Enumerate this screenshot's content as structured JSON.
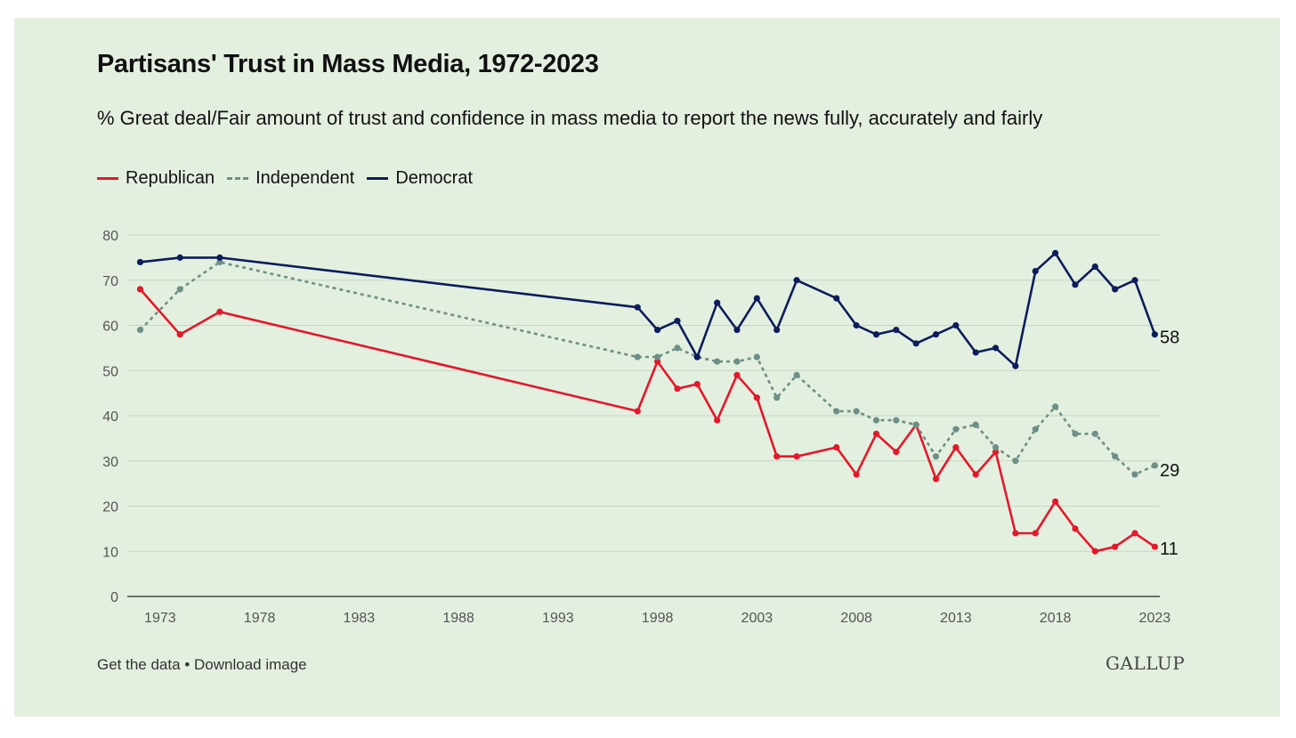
{
  "title": "Partisans' Trust in Mass Media, 1972-2023",
  "subtitle": "% Great deal/Fair amount of trust and confidence in mass media to report the news fully, accurately and fairly",
  "footer": {
    "get_data": "Get the data",
    "separator": "•",
    "download": "Download image"
  },
  "logo": "GALLUP",
  "colors": {
    "background": "#e3f0e0",
    "republican": "#e4182a",
    "independent": "#6e8f86",
    "democrat": "#0d1c5c",
    "grid": "#c6d6c3"
  },
  "chart_data": {
    "type": "line",
    "title": "Partisans' Trust in Mass Media, 1972-2023",
    "xlabel": "",
    "ylabel": "",
    "xlim": [
      1972,
      2023
    ],
    "ylim": [
      0,
      80
    ],
    "x_ticks": [
      "1973",
      "1978",
      "1983",
      "1988",
      "1993",
      "1998",
      "2003",
      "2008",
      "2013",
      "2018",
      "2023"
    ],
    "y_ticks": [
      "0",
      "10",
      "20",
      "30",
      "40",
      "50",
      "60",
      "70",
      "80"
    ],
    "grid": true,
    "legend": "top-left",
    "series": [
      {
        "name": "Republican",
        "color": "#e4182a",
        "style": "solid",
        "end_label": "11",
        "x": [
          1972,
          1974,
          1976,
          1997,
          1998,
          1999,
          2000,
          2001,
          2002,
          2003,
          2004,
          2005,
          2007,
          2008,
          2009,
          2010,
          2011,
          2012,
          2013,
          2014,
          2015,
          2016,
          2017,
          2018,
          2019,
          2020,
          2021,
          2022,
          2023
        ],
        "values": [
          68,
          58,
          63,
          41,
          52,
          46,
          47,
          39,
          49,
          44,
          31,
          31,
          33,
          27,
          36,
          32,
          38,
          26,
          33,
          27,
          32,
          14,
          14,
          21,
          15,
          10,
          11,
          14,
          11
        ]
      },
      {
        "name": "Independent",
        "color": "#6e8f86",
        "style": "dashed",
        "end_label": "29",
        "x": [
          1972,
          1974,
          1976,
          1997,
          1998,
          1999,
          2000,
          2001,
          2002,
          2003,
          2004,
          2005,
          2007,
          2008,
          2009,
          2010,
          2011,
          2012,
          2013,
          2014,
          2015,
          2016,
          2017,
          2018,
          2019,
          2020,
          2021,
          2022,
          2023
        ],
        "values": [
          59,
          68,
          74,
          53,
          53,
          55,
          53,
          52,
          52,
          53,
          44,
          49,
          41,
          41,
          39,
          39,
          38,
          31,
          37,
          38,
          33,
          30,
          37,
          42,
          36,
          36,
          31,
          27,
          29
        ]
      },
      {
        "name": "Democrat",
        "color": "#0d1c5c",
        "style": "solid",
        "end_label": "58",
        "x": [
          1972,
          1974,
          1976,
          1997,
          1998,
          1999,
          2000,
          2001,
          2002,
          2003,
          2004,
          2005,
          2007,
          2008,
          2009,
          2010,
          2011,
          2012,
          2013,
          2014,
          2015,
          2016,
          2017,
          2018,
          2019,
          2020,
          2021,
          2022,
          2023
        ],
        "values": [
          74,
          75,
          75,
          64,
          59,
          61,
          53,
          65,
          59,
          66,
          59,
          70,
          66,
          60,
          58,
          59,
          56,
          58,
          60,
          54,
          55,
          51,
          72,
          76,
          69,
          73,
          68,
          70,
          58
        ]
      }
    ]
  }
}
